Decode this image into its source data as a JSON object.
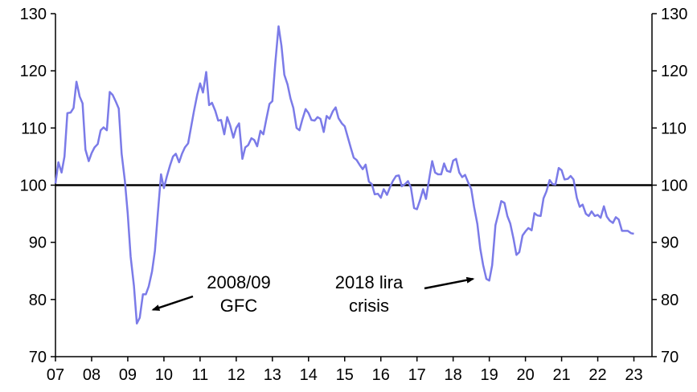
{
  "chart_data": {
    "type": "line",
    "title": "",
    "xlabel": "",
    "ylabel": "",
    "xlim": [
      2007.0,
      2023.5
    ],
    "ylim": [
      70,
      130
    ],
    "y_ticks": [
      70,
      80,
      90,
      100,
      110,
      120,
      130
    ],
    "x_ticks": [
      {
        "value": 2007,
        "label": "07"
      },
      {
        "value": 2008,
        "label": "08"
      },
      {
        "value": 2009,
        "label": "09"
      },
      {
        "value": 2010,
        "label": "10"
      },
      {
        "value": 2011,
        "label": "11"
      },
      {
        "value": 2012,
        "label": "12"
      },
      {
        "value": 2013,
        "label": "13"
      },
      {
        "value": 2014,
        "label": "14"
      },
      {
        "value": 2015,
        "label": "15"
      },
      {
        "value": 2016,
        "label": "16"
      },
      {
        "value": 2017,
        "label": "17"
      },
      {
        "value": 2018,
        "label": "18"
      },
      {
        "value": 2019,
        "label": "19"
      },
      {
        "value": 2020,
        "label": "20"
      },
      {
        "value": 2021,
        "label": "21"
      },
      {
        "value": 2022,
        "label": "22"
      },
      {
        "value": 2023,
        "label": "23"
      }
    ],
    "dual_y_axis": true,
    "grid": false,
    "reference_line": {
      "y": 100,
      "color": "#000000"
    },
    "series": [
      {
        "color": "#7b7be8",
        "x": [
          2007.0,
          2007.08,
          2007.17,
          2007.25,
          2007.33,
          2007.42,
          2007.5,
          2007.58,
          2007.67,
          2007.75,
          2007.83,
          2007.92,
          2008.0,
          2008.08,
          2008.17,
          2008.25,
          2008.33,
          2008.42,
          2008.5,
          2008.58,
          2008.67,
          2008.75,
          2008.83,
          2008.92,
          2009.0,
          2009.08,
          2009.17,
          2009.25,
          2009.33,
          2009.42,
          2009.5,
          2009.58,
          2009.67,
          2009.75,
          2009.83,
          2009.92,
          2010.0,
          2010.08,
          2010.17,
          2010.25,
          2010.33,
          2010.42,
          2010.5,
          2010.58,
          2010.67,
          2010.75,
          2010.83,
          2010.92,
          2011.0,
          2011.08,
          2011.17,
          2011.25,
          2011.33,
          2011.42,
          2011.5,
          2011.58,
          2011.67,
          2011.75,
          2011.83,
          2011.92,
          2012.0,
          2012.08,
          2012.17,
          2012.25,
          2012.33,
          2012.42,
          2012.5,
          2012.58,
          2012.67,
          2012.75,
          2012.83,
          2012.92,
          2013.0,
          2013.08,
          2013.17,
          2013.25,
          2013.33,
          2013.42,
          2013.5,
          2013.58,
          2013.67,
          2013.75,
          2013.83,
          2013.92,
          2014.0,
          2014.08,
          2014.17,
          2014.25,
          2014.33,
          2014.42,
          2014.5,
          2014.58,
          2014.67,
          2014.75,
          2014.83,
          2014.92,
          2015.0,
          2015.08,
          2015.17,
          2015.25,
          2015.33,
          2015.42,
          2015.5,
          2015.58,
          2015.67,
          2015.75,
          2015.83,
          2015.92,
          2016.0,
          2016.08,
          2016.17,
          2016.25,
          2016.33,
          2016.42,
          2016.5,
          2016.58,
          2016.67,
          2016.75,
          2016.83,
          2016.92,
          2017.0,
          2017.08,
          2017.17,
          2017.25,
          2017.33,
          2017.42,
          2017.5,
          2017.58,
          2017.67,
          2017.75,
          2017.83,
          2017.92,
          2018.0,
          2018.08,
          2018.17,
          2018.25,
          2018.33,
          2018.42,
          2018.5,
          2018.58,
          2018.67,
          2018.75,
          2018.83,
          2018.92,
          2019.0,
          2019.08,
          2019.17,
          2019.25,
          2019.33,
          2019.42,
          2019.5,
          2019.58,
          2019.67,
          2019.75,
          2019.83,
          2019.92,
          2020.0,
          2020.08,
          2020.17,
          2020.25,
          2020.33,
          2020.42,
          2020.5,
          2020.58,
          2020.67,
          2020.75,
          2020.83,
          2020.92,
          2021.0,
          2021.08,
          2021.17,
          2021.25,
          2021.33,
          2021.42,
          2021.5,
          2021.58,
          2021.67,
          2021.75,
          2021.83,
          2021.92,
          2022.0,
          2022.08,
          2022.17,
          2022.25,
          2022.33,
          2022.42,
          2022.5,
          2022.58,
          2022.67,
          2022.75,
          2022.83,
          2022.92,
          2023.0
        ],
        "values": [
          100.3,
          104.0,
          102.2,
          105.0,
          112.6,
          112.7,
          113.5,
          118.1,
          115.5,
          114.3,
          106.2,
          104.2,
          105.6,
          106.6,
          107.2,
          109.6,
          110.1,
          109.6,
          116.3,
          115.8,
          114.6,
          113.4,
          105.5,
          100.8,
          95.0,
          87.5,
          82.4,
          75.8,
          76.8,
          80.9,
          80.9,
          82.3,
          84.9,
          88.5,
          95.0,
          101.9,
          99.5,
          101.5,
          103.5,
          105.0,
          105.5,
          104.0,
          105.5,
          106.6,
          107.3,
          110.1,
          112.9,
          115.8,
          117.8,
          116.2,
          119.8,
          114.0,
          114.4,
          113.0,
          111.3,
          111.4,
          108.9,
          111.9,
          110.5,
          108.3,
          110.0,
          110.8,
          104.6,
          106.6,
          107.0,
          108.2,
          107.9,
          106.8,
          109.5,
          108.9,
          111.5,
          114.2,
          114.7,
          121.3,
          127.8,
          124.4,
          119.3,
          117.6,
          115.2,
          113.5,
          110.0,
          109.6,
          111.5,
          113.3,
          112.6,
          111.4,
          111.3,
          111.9,
          111.6,
          109.3,
          112.1,
          111.6,
          112.9,
          113.6,
          111.7,
          110.8,
          110.3,
          108.5,
          106.5,
          104.8,
          104.4,
          103.5,
          102.8,
          103.6,
          100.6,
          100.2,
          98.4,
          98.5,
          97.8,
          99.3,
          98.3,
          99.6,
          100.7,
          101.6,
          101.7,
          99.8,
          100.2,
          100.7,
          99.6,
          96.0,
          95.8,
          97.3,
          99.3,
          97.6,
          100.8,
          104.2,
          102.2,
          101.9,
          101.9,
          103.8,
          102.5,
          102.3,
          104.3,
          104.6,
          102.2,
          101.4,
          101.8,
          100.4,
          99.3,
          96.2,
          93.2,
          88.9,
          86.0,
          83.6,
          83.3,
          86.0,
          93.0,
          95.0,
          97.2,
          96.9,
          94.6,
          93.3,
          90.6,
          87.8,
          88.3,
          91.2,
          91.9,
          92.5,
          92.1,
          95.1,
          94.7,
          94.6,
          97.7,
          98.9,
          100.9,
          100.2,
          100.1,
          103.0,
          102.6,
          101.0,
          101.1,
          101.6,
          101.0,
          97.8,
          96.2,
          96.6,
          95.0,
          94.6,
          95.4,
          94.6,
          94.8,
          94.3,
          96.3,
          94.5,
          93.8,
          93.4,
          94.4,
          94.0,
          92.0,
          92.0,
          92.0,
          91.6,
          91.5
        ]
      }
    ],
    "annotations": [
      {
        "lines": [
          "2008/09",
          "GFC"
        ],
        "target": {
          "x": 2009.7,
          "y": 78.2
        }
      },
      {
        "lines": [
          "2018 lira",
          "crisis"
        ],
        "target": {
          "x": 2018.55,
          "y": 83.6
        }
      }
    ]
  }
}
